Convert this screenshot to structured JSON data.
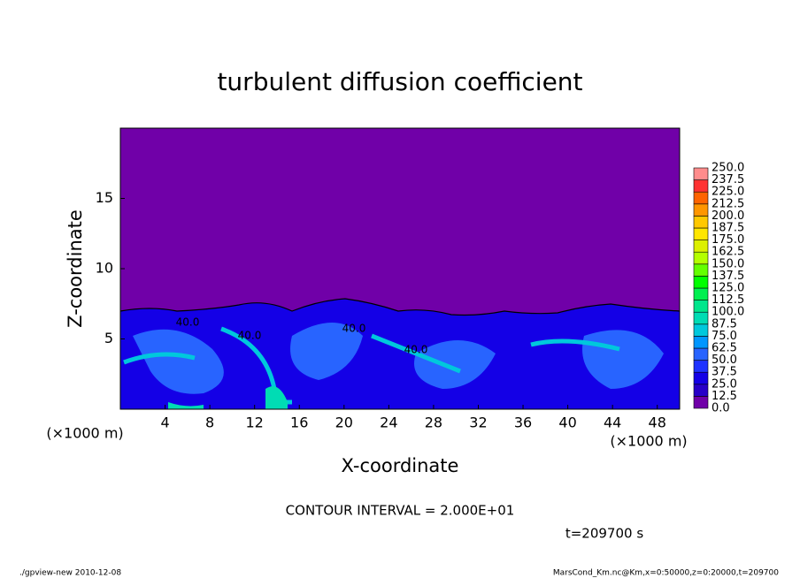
{
  "chart_data": {
    "type": "contour",
    "title": "turbulent diffusion coefficient",
    "x_label": "X-coordinate",
    "y_label": "Z-coordinate",
    "x_unit": "(×1000 m)",
    "y_unit": "(×1000 m)",
    "xlim": [
      0,
      50
    ],
    "ylim": [
      0,
      20
    ],
    "xticks": [
      4,
      8,
      12,
      16,
      20,
      24,
      28,
      32,
      36,
      40,
      44,
      48
    ],
    "yticks": [
      5,
      10,
      15
    ],
    "colorbar_levels": [
      {
        "value": 0,
        "label": "0.0"
      },
      {
        "value": 12.5,
        "label": "12.5"
      },
      {
        "value": 25,
        "label": "25.0"
      },
      {
        "value": 37.5,
        "label": "37.5"
      },
      {
        "value": 50,
        "label": "50.0"
      },
      {
        "value": 62.5,
        "label": "62.5"
      },
      {
        "value": 75,
        "label": "75.0"
      },
      {
        "value": 87.5,
        "label": "87.5"
      },
      {
        "value": 100,
        "label": "100.0"
      },
      {
        "value": 112.5,
        "label": "112.5"
      },
      {
        "value": 125,
        "label": "125.0"
      },
      {
        "value": 137.5,
        "label": "137.5"
      },
      {
        "value": 150,
        "label": "150.0"
      },
      {
        "value": 162.5,
        "label": "162.5"
      },
      {
        "value": 175,
        "label": "175.0"
      },
      {
        "value": 187.5,
        "label": "187.5"
      },
      {
        "value": 200,
        "label": "200.0"
      },
      {
        "value": 212.5,
        "label": "212.5"
      },
      {
        "value": 225,
        "label": "225.0"
      },
      {
        "value": 237.5,
        "label": "237.5"
      },
      {
        "value": 250,
        "label": "250.0"
      }
    ],
    "colorbar_colors": [
      "#7000a8",
      "#2800c8",
      "#1400e6",
      "#1e32ff",
      "#2864ff",
      "#0096ff",
      "#00c8dc",
      "#00dcb4",
      "#00e68c",
      "#00f050",
      "#00ff00",
      "#64ff00",
      "#b4ff00",
      "#dcf000",
      "#ffe600",
      "#ffc800",
      "#ff9600",
      "#ff6400",
      "#ff3232",
      "#ff8c8c"
    ],
    "contour_labels": [
      "40.0",
      "40.0",
      "40.0",
      "40.0"
    ],
    "contour_interval": "CONTOUR INTERVAL = 2.000E+01",
    "time_label": "t=209700 s",
    "footer_left": "./gpview-new  2010-12-08",
    "footer_right": "MarsCond_Km.nc@Km,x=0:50000,z=0:20000,t=209700"
  }
}
